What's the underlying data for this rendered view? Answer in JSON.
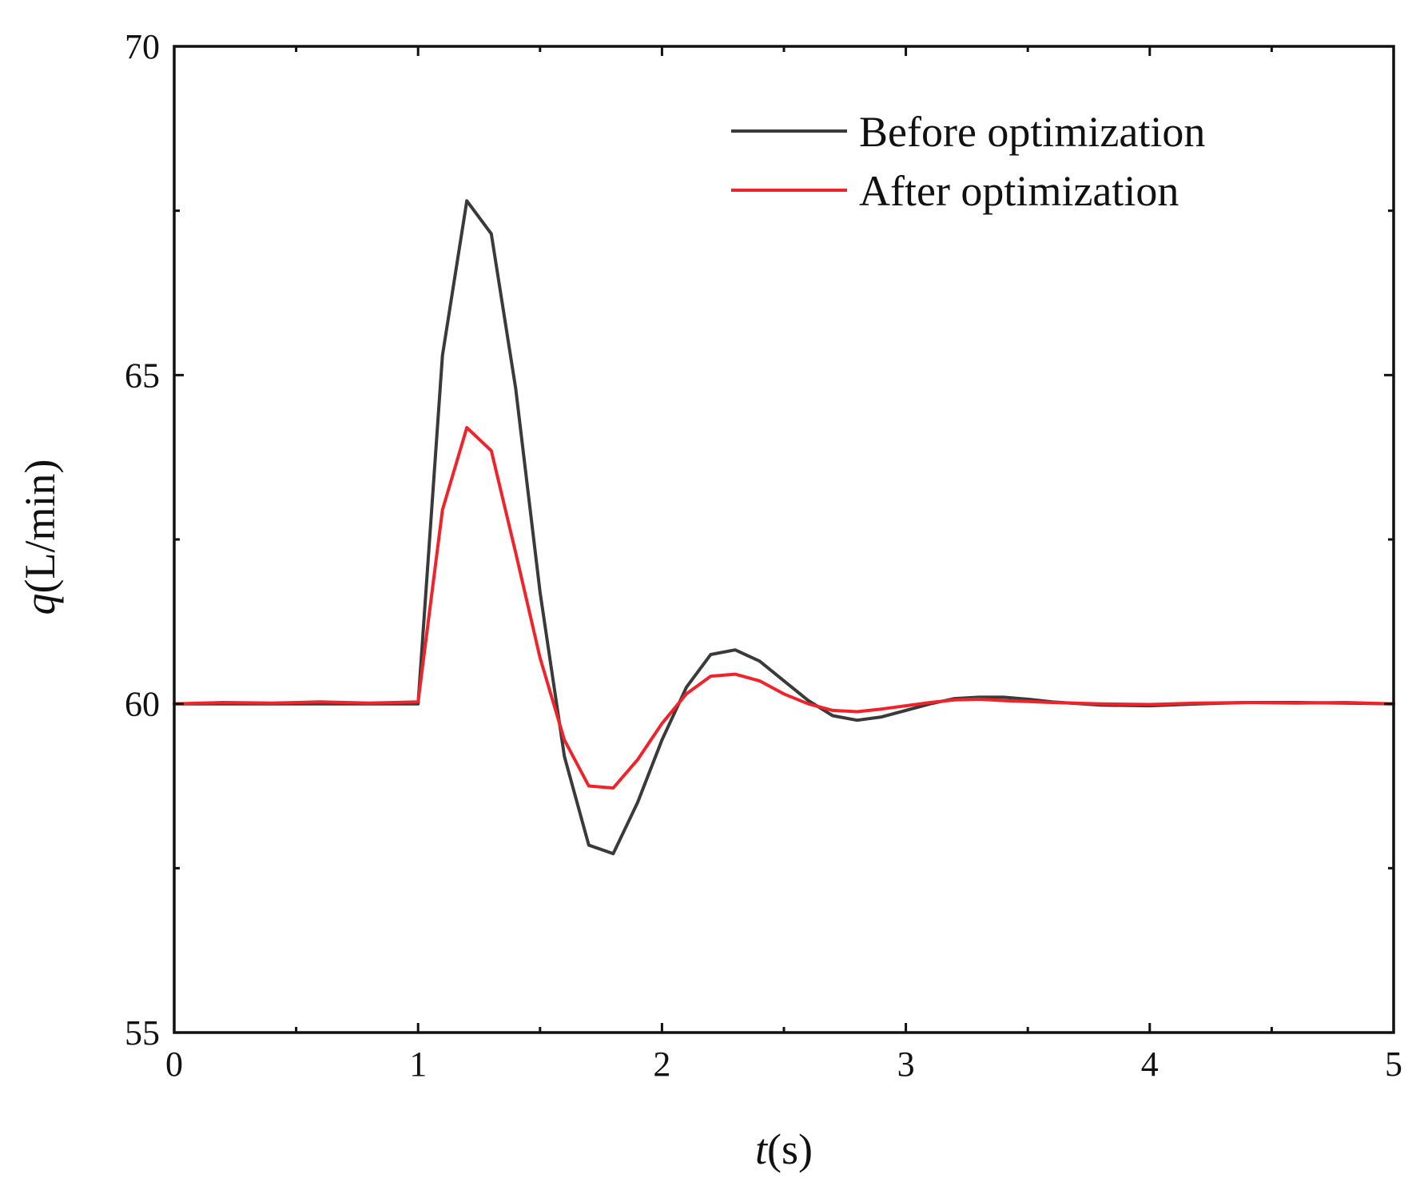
{
  "chart_data": {
    "type": "line",
    "title": "",
    "xlabel_italic": "t",
    "xlabel_unit": "(s)",
    "ylabel_italic": "q",
    "ylabel_unit": "(L/min)",
    "xlim": [
      0,
      5
    ],
    "ylim": [
      55,
      70
    ],
    "xticks": [
      0,
      1,
      2,
      3,
      4,
      5
    ],
    "xtick_labels": [
      "0",
      "1",
      "2",
      "3",
      "4",
      "5"
    ],
    "yticks": [
      55,
      60,
      65,
      70
    ],
    "ytick_labels": [
      "55",
      "60",
      "65",
      "70"
    ],
    "grid": false,
    "legend_position": "top-right",
    "series": [
      {
        "name": "Before optimization",
        "color": "#3a3a3a",
        "x": [
          0,
          0.2,
          0.4,
          0.6,
          0.8,
          1.0,
          1.1,
          1.2,
          1.3,
          1.4,
          1.5,
          1.6,
          1.7,
          1.8,
          1.9,
          2.0,
          2.1,
          2.2,
          2.3,
          2.4,
          2.5,
          2.6,
          2.7,
          2.8,
          2.9,
          3.0,
          3.1,
          3.2,
          3.3,
          3.4,
          3.5,
          3.6,
          3.8,
          4.0,
          4.2,
          4.4,
          4.6,
          4.8,
          5.0
        ],
        "y": [
          60.0,
          60.0,
          60.0,
          60.0,
          60.0,
          60.0,
          65.3,
          67.65,
          67.15,
          64.8,
          61.7,
          59.2,
          57.85,
          57.72,
          58.5,
          59.45,
          60.25,
          60.75,
          60.82,
          60.65,
          60.35,
          60.05,
          59.82,
          59.75,
          59.8,
          59.9,
          60.0,
          60.08,
          60.1,
          60.1,
          60.07,
          60.03,
          59.98,
          59.97,
          60.0,
          60.02,
          60.02,
          60.01,
          60.0
        ]
      },
      {
        "name": "After optimization",
        "color": "#f0232a",
        "x": [
          0,
          0.2,
          0.4,
          0.6,
          0.8,
          1.0,
          1.1,
          1.2,
          1.3,
          1.4,
          1.5,
          1.6,
          1.7,
          1.8,
          1.9,
          2.0,
          2.1,
          2.2,
          2.3,
          2.4,
          2.5,
          2.6,
          2.7,
          2.8,
          2.9,
          3.0,
          3.1,
          3.2,
          3.3,
          3.4,
          3.6,
          3.8,
          4.0,
          4.2,
          4.4,
          4.6,
          4.8,
          5.0
        ],
        "y": [
          60.0,
          60.02,
          60.01,
          60.03,
          60.01,
          60.03,
          62.95,
          64.2,
          63.85,
          62.3,
          60.7,
          59.45,
          58.75,
          58.72,
          59.15,
          59.7,
          60.15,
          60.42,
          60.45,
          60.35,
          60.15,
          60.0,
          59.9,
          59.88,
          59.92,
          59.97,
          60.02,
          60.06,
          60.07,
          60.05,
          60.02,
          60.0,
          59.99,
          60.01,
          60.02,
          60.01,
          60.02,
          60.0
        ]
      }
    ]
  }
}
